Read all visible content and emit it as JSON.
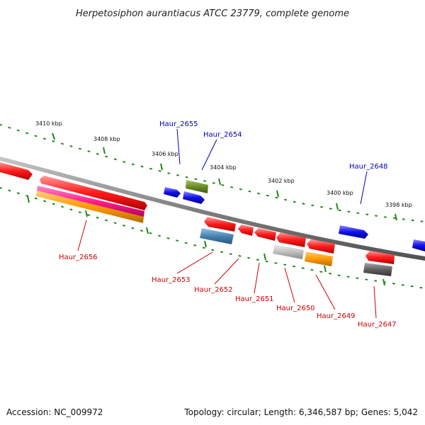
{
  "title": "Herpetosiphon aurantiacus ATCC 23779, complete genome",
  "footer": {
    "accession": "Accession: NC_009972",
    "summary": "Topology: circular; Length: 6,346,587 bp; Genes: 5,042"
  },
  "ticks": [
    "3410 kbp",
    "3408 kbp",
    "3406 kbp",
    "3404 kbp",
    "3402 kbp",
    "3400 kbp",
    "3398 kbp"
  ],
  "colors": {
    "backbone": "#808080",
    "scale_dots": "#1a8a1a",
    "forward_label": "#0000bb",
    "reverse_label": "#cc0000",
    "red": "#ff1a1a",
    "blue": "#1010ee",
    "olive": "#6b8e23",
    "pink": "#ff2090",
    "orange": "#ff9900",
    "steel": "#4682b4",
    "silver": "#c0c0c0",
    "dimgray": "#606060"
  },
  "genes": [
    {
      "id": "Haur_2655",
      "color": "#1010ee",
      "strand": "+"
    },
    {
      "id": "Haur_2654",
      "color": "#6b8e23",
      "strand": "+"
    },
    {
      "id": "Haur_2648",
      "color": "#1010ee",
      "strand": "+"
    },
    {
      "id": "Haur_2656",
      "color": "#ff2090",
      "strand": "-"
    },
    {
      "id": "Haur_2653",
      "color": "#4682b4",
      "strand": "-"
    },
    {
      "id": "Haur_2652",
      "color": "#ff1a1a",
      "strand": "-"
    },
    {
      "id": "Haur_2651",
      "color": "#ff1a1a",
      "strand": "-"
    },
    {
      "id": "Haur_2650",
      "color": "#c0c0c0",
      "strand": "-"
    },
    {
      "id": "Haur_2649",
      "color": "#ff9900",
      "strand": "-"
    },
    {
      "id": "Haur_2647",
      "color": "#606060",
      "strand": "-"
    }
  ]
}
